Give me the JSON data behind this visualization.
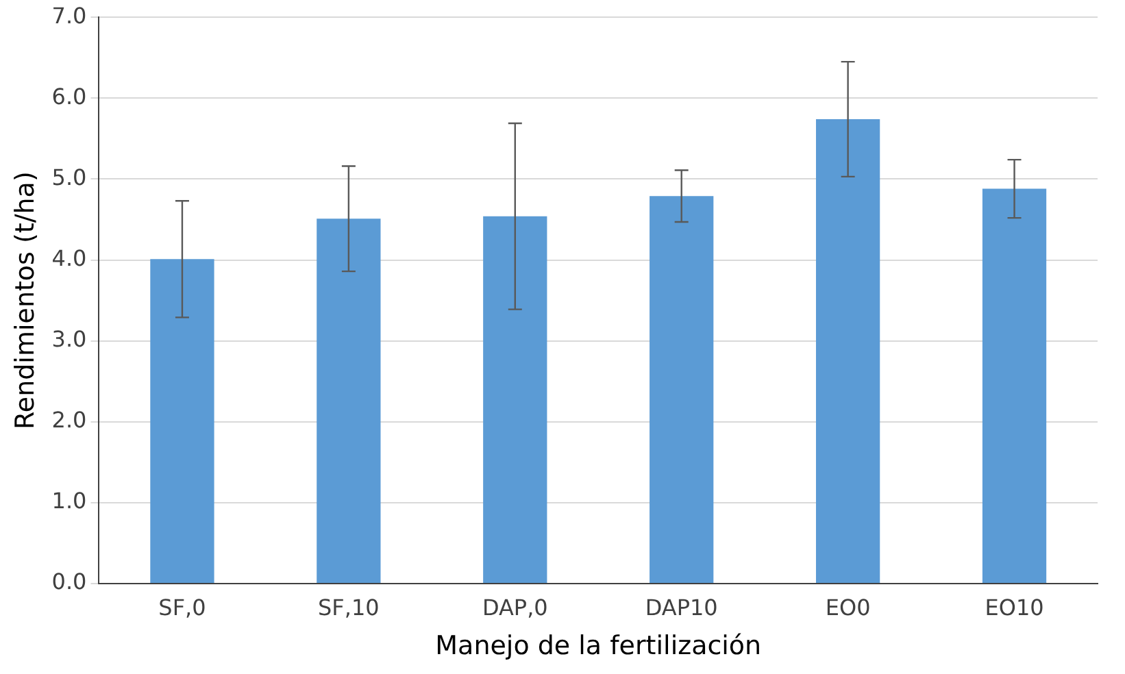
{
  "chart_data": {
    "type": "bar",
    "xlabel": "Manejo de la fertilización",
    "ylabel": "Rendimientos (t/ha)",
    "categories": [
      "SF,0",
      "SF,10",
      "DAP,0",
      "DAP10",
      "EO0",
      "EO10"
    ],
    "values": [
      4.01,
      4.51,
      4.54,
      4.79,
      5.74,
      4.88
    ],
    "errors": [
      0.72,
      0.65,
      1.15,
      0.32,
      0.71,
      0.36
    ],
    "color": "#5b9bd5",
    "ylim": [
      0,
      7
    ],
    "yticks": [
      {
        "value": 0,
        "label": "0.0"
      },
      {
        "value": 1,
        "label": "1.0"
      },
      {
        "value": 2,
        "label": "2.0"
      },
      {
        "value": 3,
        "label": "3.0"
      },
      {
        "value": 4,
        "label": "4.0"
      },
      {
        "value": 5,
        "label": "5.0"
      },
      {
        "value": 6,
        "label": "6.0"
      },
      {
        "value": 7,
        "label": "7.0"
      }
    ],
    "grid": "y",
    "legend": false
  }
}
